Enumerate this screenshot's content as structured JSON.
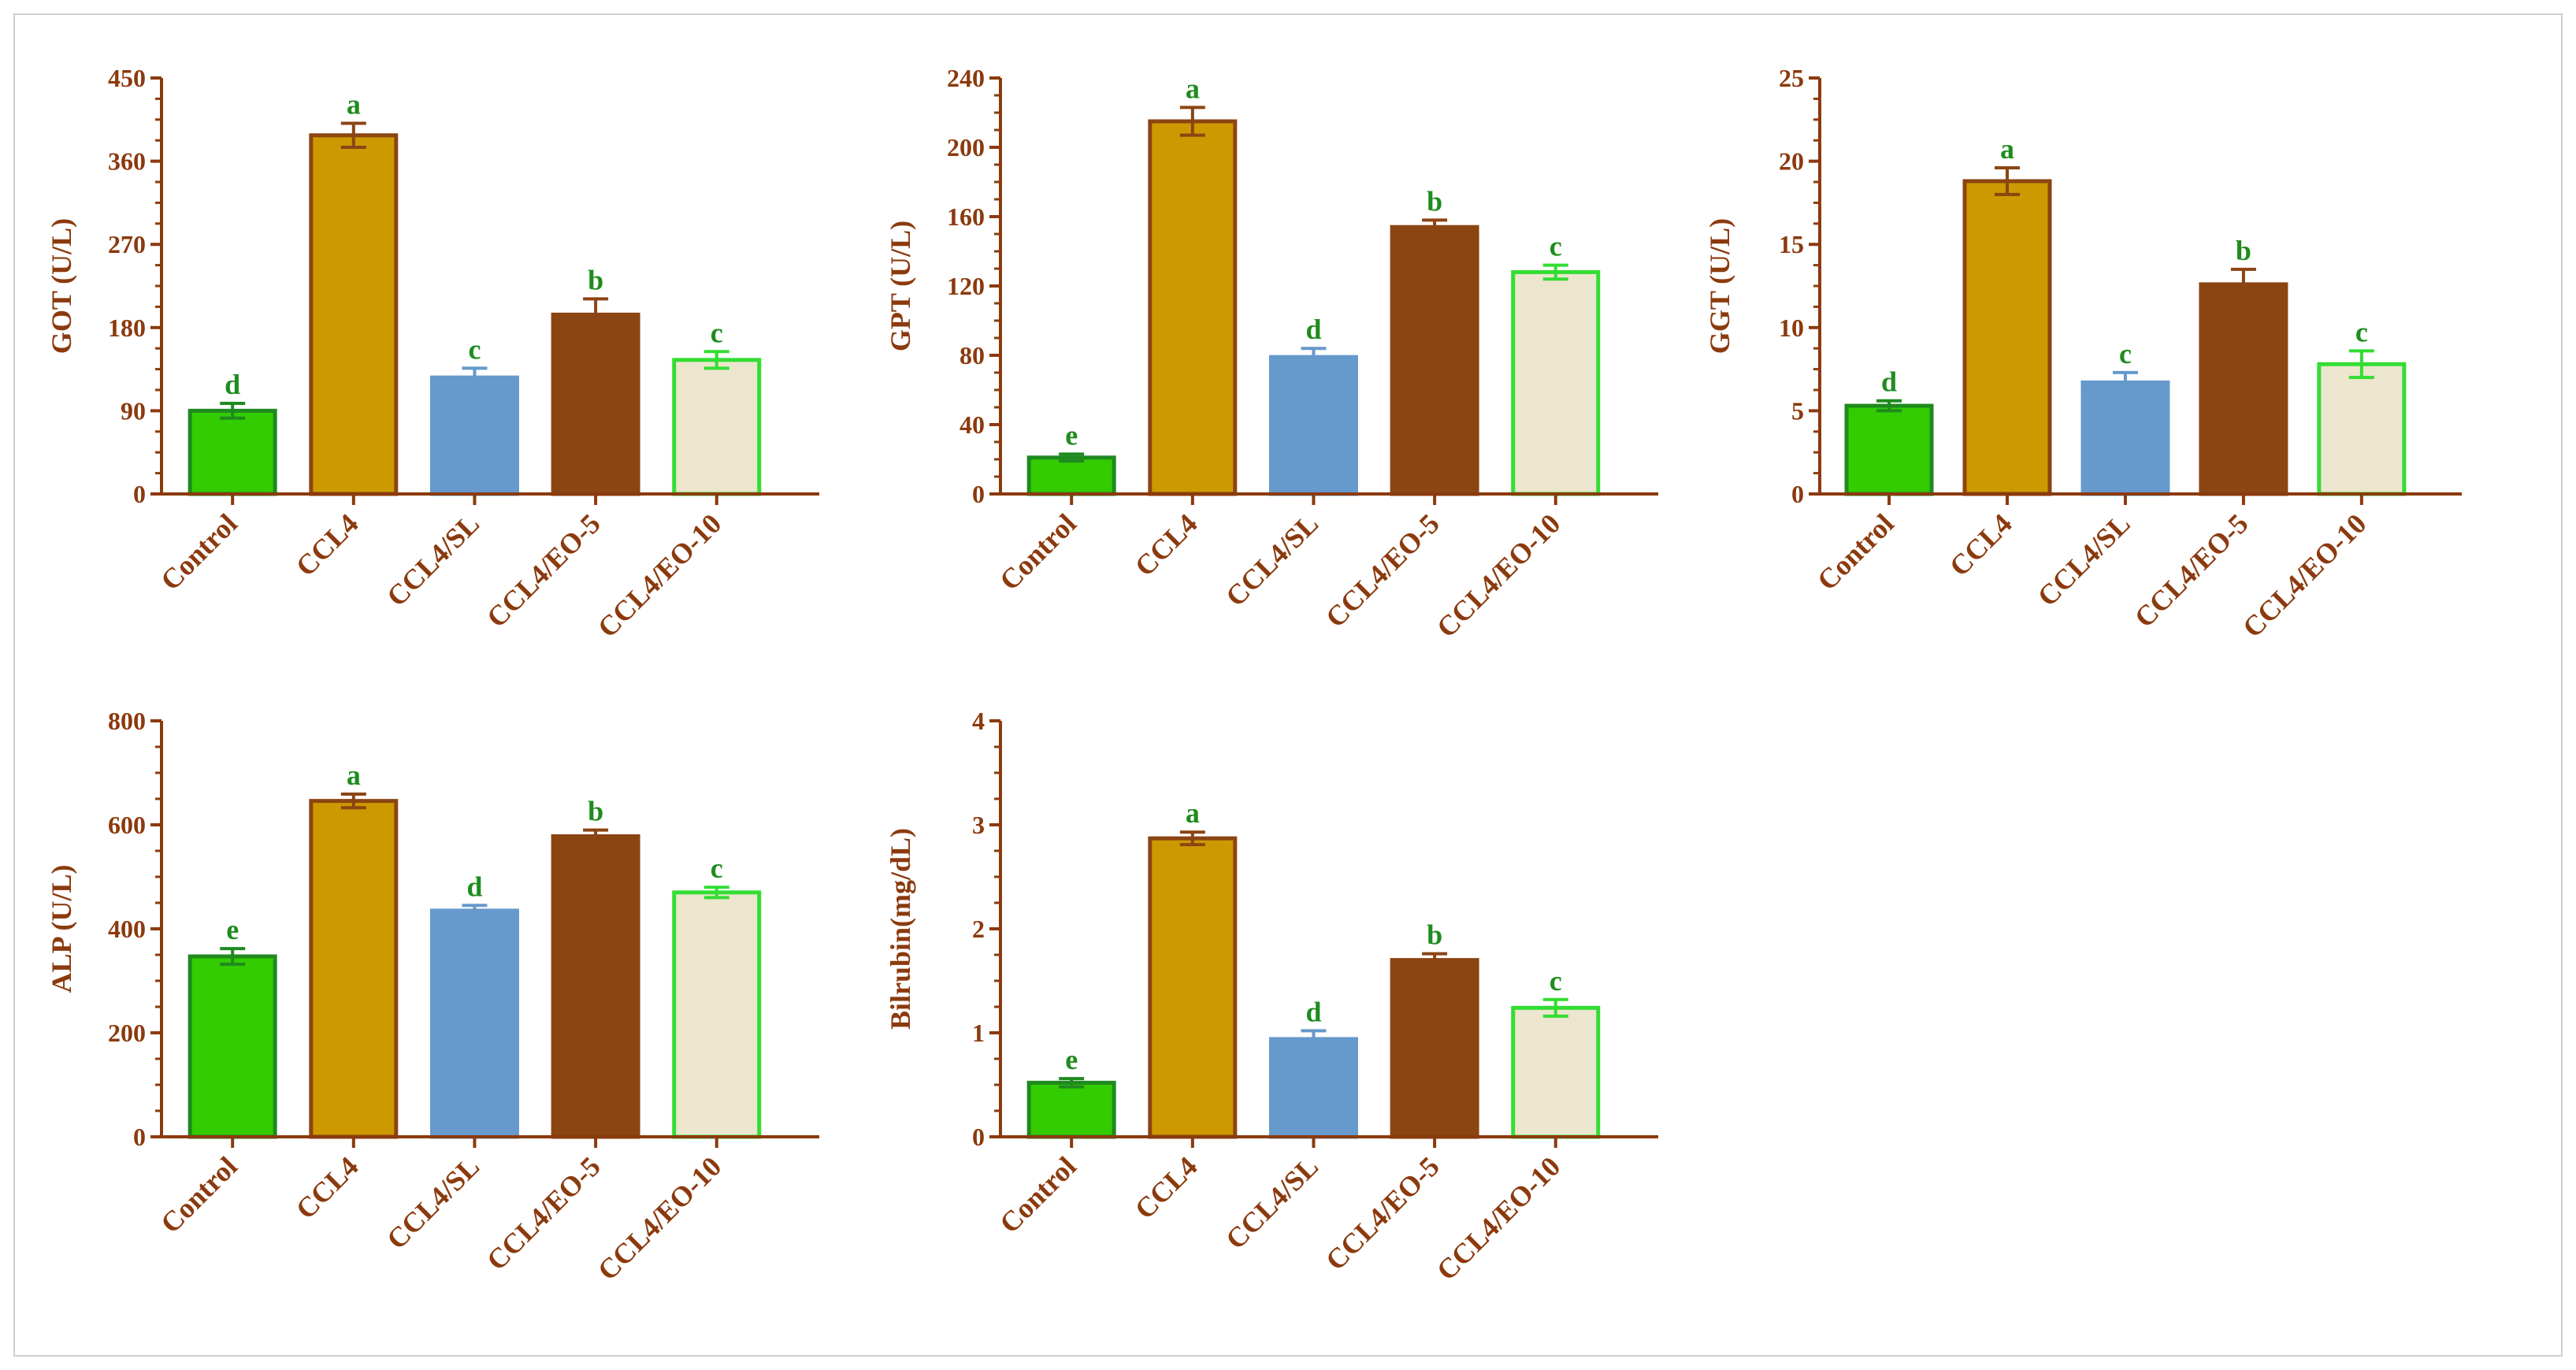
{
  "colors": {
    "axis": "#8B3A0E",
    "letter": "#1E8C1E",
    "frame": "#cfcfcf",
    "bars": [
      {
        "fill": "#33CC00",
        "stroke": "#1F8A1F"
      },
      {
        "fill": "#CC9900",
        "stroke": "#8B4513"
      },
      {
        "fill": "#6699CC",
        "stroke": "#6699CC"
      },
      {
        "fill": "#8B4513",
        "stroke": "#8B4513"
      },
      {
        "fill": "#EDE6CF",
        "stroke": "#33DD33"
      }
    ]
  },
  "chart_data": [
    {
      "type": "bar",
      "ylabel": "GOT (U/L)",
      "categories": [
        "Control",
        "CCL4",
        "CCL4/SL",
        "CCL4/EO-5",
        "CCL4/EO-10"
      ],
      "values": [
        90,
        388,
        126,
        194,
        145
      ],
      "errors": [
        8,
        13,
        10,
        17,
        9
      ],
      "letters": [
        "d",
        "a",
        "c",
        "b",
        "c"
      ],
      "ylim": [
        0,
        450
      ],
      "yticks": [
        "0",
        "90",
        "180",
        "270",
        "360",
        "450"
      ]
    },
    {
      "type": "bar",
      "ylabel": "GPT (U/L)",
      "categories": [
        "Control",
        "CCL4",
        "CCL4/SL",
        "CCL4/EO-5",
        "CCL4/EO-10"
      ],
      "values": [
        21,
        215,
        79,
        154,
        128
      ],
      "errors": [
        2,
        8,
        5,
        4,
        4
      ],
      "letters": [
        "e",
        "a",
        "d",
        "b",
        "c"
      ],
      "ylim": [
        0,
        240
      ],
      "yticks": [
        "0",
        "40",
        "80",
        "120",
        "160",
        "200",
        "240"
      ]
    },
    {
      "type": "bar",
      "ylabel": "GGT (U/L)",
      "categories": [
        "Control",
        "CCL4",
        "CCL4/SL",
        "CCL4/EO-5",
        "CCL4/EO-10"
      ],
      "values": [
        5.3,
        18.8,
        6.7,
        12.6,
        7.8
      ],
      "errors": [
        0.3,
        0.8,
        0.6,
        0.9,
        0.8
      ],
      "letters": [
        "d",
        "a",
        "c",
        "b",
        "c"
      ],
      "ylim": [
        0,
        25
      ],
      "yticks": [
        "0",
        "5",
        "10",
        "15",
        "20",
        "25"
      ]
    },
    {
      "type": "bar",
      "ylabel": "ALP (U/L)",
      "categories": [
        "Control",
        "CCL4",
        "CCL4/SL",
        "CCL4/EO-5",
        "CCL4/EO-10"
      ],
      "values": [
        347,
        646,
        435,
        578,
        470
      ],
      "errors": [
        15,
        13,
        10,
        12,
        10
      ],
      "letters": [
        "e",
        "a",
        "d",
        "b",
        "c"
      ],
      "ylim": [
        0,
        800
      ],
      "yticks": [
        "0",
        "200",
        "400",
        "600",
        "800"
      ]
    },
    {
      "type": "bar",
      "ylabel": "Bilrubin(mg/dL)",
      "categories": [
        "Control",
        "CCL4",
        "CCL4/SL",
        "CCL4/EO-5",
        "CCL4/EO-10"
      ],
      "values": [
        0.52,
        2.87,
        0.94,
        1.7,
        1.24
      ],
      "errors": [
        0.04,
        0.06,
        0.08,
        0.06,
        0.08
      ],
      "letters": [
        "e",
        "a",
        "d",
        "b",
        "c"
      ],
      "ylim": [
        0,
        4
      ],
      "yticks": [
        "0",
        "1",
        "2",
        "3",
        "4"
      ]
    }
  ]
}
